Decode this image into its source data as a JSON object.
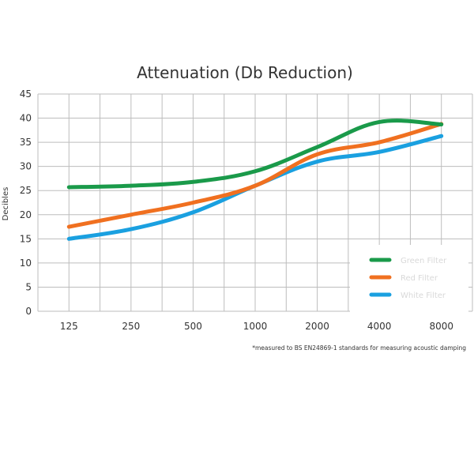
{
  "chart_data": {
    "type": "line",
    "title": "Attenuation (Db Reduction)",
    "xlabel": "",
    "ylabel": "Decibles",
    "categories": [
      "125",
      "250",
      "500",
      "1000",
      "2000",
      "4000",
      "8000"
    ],
    "ylim": [
      0,
      45
    ],
    "yticks": [
      "0",
      "5",
      "10",
      "15",
      "20",
      "25",
      "30",
      "35",
      "40",
      "45"
    ],
    "grid": true,
    "legend_position": "bottom-right",
    "series": [
      {
        "name": "Green Filter",
        "color": "#1a9a4a",
        "values": [
          25.7,
          26.0,
          26.8,
          29.0,
          34.0,
          39.2,
          38.7
        ]
      },
      {
        "name": "Red Filter",
        "color": "#f07020",
        "values": [
          17.5,
          20.0,
          22.5,
          26.0,
          32.5,
          35.0,
          38.8
        ]
      },
      {
        "name": "White Filter",
        "color": "#1aa0e0",
        "values": [
          15.0,
          17.0,
          20.5,
          26.0,
          31.0,
          33.0,
          36.3
        ]
      }
    ],
    "footnote": "*measured to BS EN24869-1 standards for measuring acoustic damping"
  }
}
